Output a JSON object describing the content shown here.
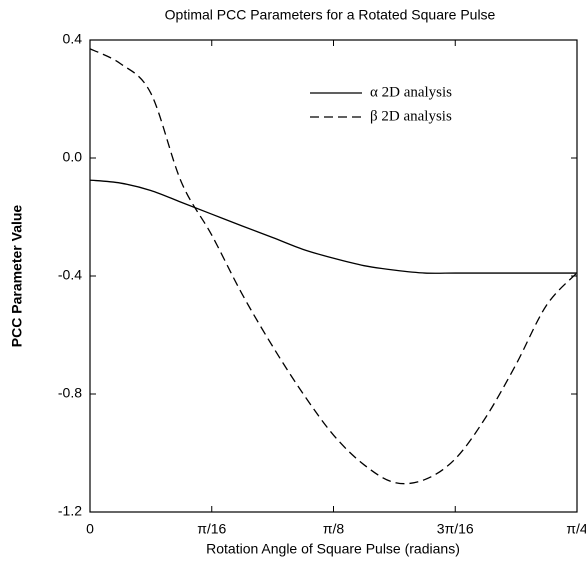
{
  "chart_data": {
    "type": "line",
    "title": "Optimal PCC Parameters for a Rotated Square Pulse",
    "x_label": "Rotation Angle of Square Pulse (radians)",
    "y_label": "PCC Parameter Value",
    "x": [
      0,
      0.049,
      0.098,
      0.147,
      0.196,
      0.245,
      0.295,
      0.344,
      0.393,
      0.442,
      0.491,
      0.54,
      0.589,
      0.638,
      0.687,
      0.736,
      0.785
    ],
    "series": [
      {
        "name": "α 2D analysis",
        "color": "#000000",
        "style": "solid",
        "values": [
          -0.075,
          -0.085,
          -0.11,
          -0.15,
          -0.19,
          -0.23,
          -0.27,
          -0.31,
          -0.34,
          -0.365,
          -0.38,
          -0.39,
          -0.39,
          -0.39,
          -0.39,
          -0.39,
          -0.39
        ]
      },
      {
        "name": "β 2D analysis",
        "color": "#000000",
        "style": "dashed",
        "values": [
          0.37,
          0.32,
          0.22,
          -0.08,
          -0.26,
          -0.46,
          -0.64,
          -0.8,
          -0.94,
          -1.04,
          -1.1,
          -1.09,
          -1.02,
          -0.88,
          -0.7,
          -0.5,
          -0.39
        ]
      }
    ],
    "xlim": [
      0,
      0.7854
    ],
    "xticks": [
      0,
      {
        "value": 0.19635,
        "label": "π/16"
      },
      {
        "value": 0.3927,
        "label": "π/8"
      },
      {
        "value": 0.58905,
        "label": "3π/16"
      },
      {
        "value": 0.7854,
        "label": "π/4"
      }
    ],
    "ylim": [
      -1.2,
      0.4
    ],
    "yticks": [
      0.4,
      {
        "value": 0,
        "label": "0.0"
      },
      -0.4,
      -0.8,
      -1.2
    ],
    "legend": "upper right"
  }
}
